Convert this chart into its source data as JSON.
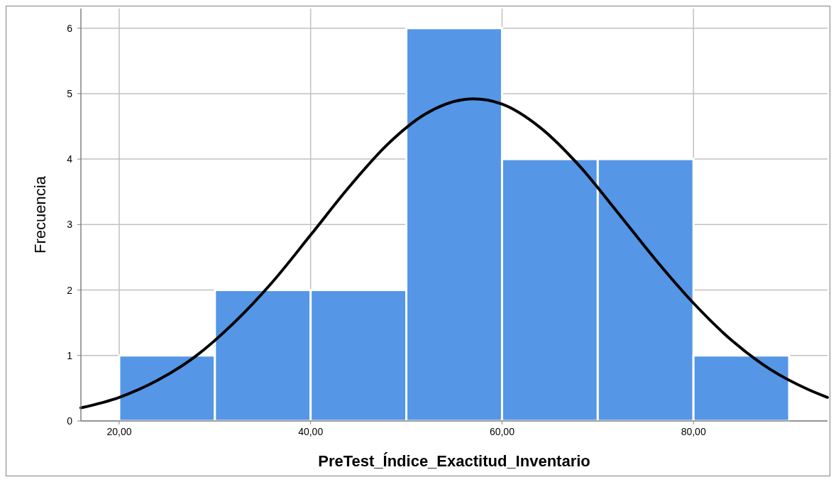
{
  "chart_data": {
    "type": "histogram",
    "xlabel": "PreTest_Índice_Exactitud_Inventario",
    "ylabel": "Frecuencia",
    "bins": [
      20,
      30,
      40,
      50,
      60,
      70,
      80,
      90
    ],
    "values": [
      1,
      2,
      2,
      6,
      4,
      4,
      1
    ],
    "color": "#5596e6",
    "series": [
      {
        "type": "line",
        "color": "#000000",
        "x": [
          16,
          20,
          24,
          28,
          32,
          36,
          40,
          44,
          48,
          52,
          56,
          57,
          60,
          64,
          68,
          72,
          76,
          80,
          84,
          88,
          92,
          94
        ],
        "values": [
          0.2,
          0.36,
          0.62,
          0.99,
          1.5,
          2.12,
          2.84,
          3.57,
          4.22,
          4.69,
          4.91,
          4.92,
          4.84,
          4.48,
          3.91,
          3.2,
          2.47,
          1.8,
          1.23,
          0.79,
          0.48,
          0.36
        ]
      }
    ],
    "xlim": [
      16,
      94
    ],
    "xticks": [
      {
        "value": 20,
        "label": "20,00"
      },
      {
        "value": 40,
        "label": "40,00"
      },
      {
        "value": 60,
        "label": "60,00"
      },
      {
        "value": 80,
        "label": "80,00"
      }
    ],
    "ylim": [
      0,
      6.3
    ],
    "yticks": [
      0,
      1,
      2,
      3,
      4,
      5,
      6
    ],
    "grid": true
  }
}
